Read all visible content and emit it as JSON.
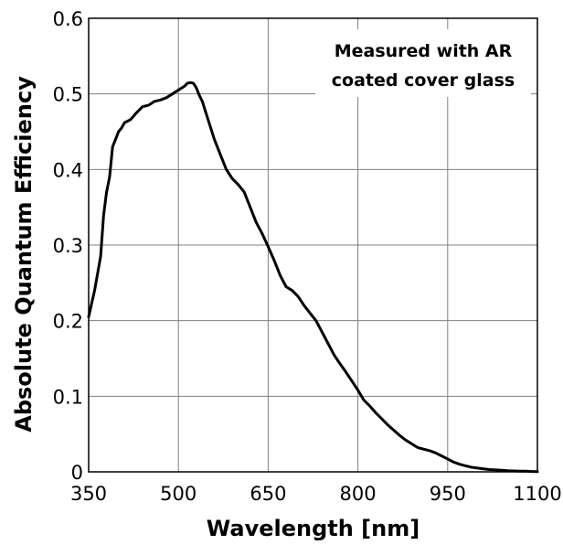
{
  "chart_data": {
    "type": "line",
    "xlabel": "Wavelength [nm]",
    "ylabel": "Absolute Quantum Efficiency",
    "xlim": [
      350,
      1100
    ],
    "ylim": [
      0,
      0.6
    ],
    "x_ticks": [
      "350",
      "500",
      "650",
      "800",
      "950",
      "1100"
    ],
    "y_ticks": [
      "0",
      "0.1",
      "0.2",
      "0.3",
      "0.4",
      "0.5",
      "0.6"
    ],
    "grid": true,
    "annotation": [
      "Measured with AR",
      "coated cover glass"
    ],
    "series": [
      {
        "x": [
          350,
          360,
          370,
          375,
          380,
          385,
          390,
          395,
          400,
          405,
          410,
          420,
          430,
          440,
          450,
          460,
          470,
          480,
          490,
          500,
          510,
          515,
          520,
          525,
          530,
          535,
          540,
          550,
          560,
          570,
          580,
          590,
          600,
          610,
          620,
          630,
          640,
          650,
          660,
          670,
          680,
          690,
          700,
          710,
          720,
          730,
          740,
          750,
          760,
          770,
          780,
          790,
          800,
          810,
          820,
          830,
          840,
          850,
          860,
          870,
          880,
          890,
          900,
          910,
          920,
          930,
          940,
          950,
          960,
          970,
          980,
          990,
          1000,
          1010,
          1020,
          1030,
          1040,
          1050,
          1060,
          1070,
          1080,
          1090,
          1100
        ],
        "y": [
          0.205,
          0.24,
          0.285,
          0.34,
          0.37,
          0.39,
          0.43,
          0.44,
          0.45,
          0.455,
          0.462,
          0.466,
          0.475,
          0.483,
          0.485,
          0.49,
          0.492,
          0.495,
          0.5,
          0.505,
          0.51,
          0.514,
          0.515,
          0.514,
          0.508,
          0.498,
          0.49,
          0.465,
          0.44,
          0.42,
          0.4,
          0.388,
          0.38,
          0.37,
          0.35,
          0.33,
          0.315,
          0.298,
          0.28,
          0.26,
          0.245,
          0.24,
          0.232,
          0.22,
          0.21,
          0.2,
          0.185,
          0.17,
          0.155,
          0.143,
          0.132,
          0.12,
          0.108,
          0.095,
          0.087,
          0.078,
          0.07,
          0.062,
          0.055,
          0.048,
          0.042,
          0.037,
          0.032,
          0.03,
          0.028,
          0.025,
          0.021,
          0.017,
          0.013,
          0.01,
          0.008,
          0.006,
          0.005,
          0.004,
          0.003,
          0.0025,
          0.002,
          0.0015,
          0.0012,
          0.001,
          0.0008,
          0.0005,
          0.0003
        ]
      }
    ]
  }
}
